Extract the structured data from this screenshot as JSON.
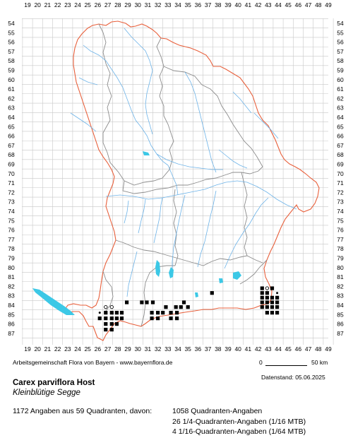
{
  "grid": {
    "x_labels": [
      "19",
      "20",
      "21",
      "22",
      "23",
      "24",
      "25",
      "26",
      "27",
      "28",
      "29",
      "30",
      "31",
      "32",
      "33",
      "34",
      "35",
      "36",
      "37",
      "38",
      "39",
      "40",
      "41",
      "42",
      "43",
      "44",
      "45",
      "46",
      "47",
      "48",
      "49"
    ],
    "y_labels": [
      "54",
      "55",
      "56",
      "57",
      "58",
      "59",
      "60",
      "61",
      "62",
      "63",
      "64",
      "65",
      "66",
      "67",
      "68",
      "69",
      "70",
      "71",
      "72",
      "73",
      "74",
      "75",
      "76",
      "77",
      "78",
      "79",
      "80",
      "81",
      "82",
      "83",
      "84",
      "85",
      "86",
      "87"
    ]
  },
  "colors": {
    "grid": "#c8c8c8",
    "state_border": "#e8603c",
    "district_border": "#8c8c8c",
    "rivers": "#6db3e8",
    "lakes": "#3cc8e6",
    "dots": "#000000"
  },
  "occurrences": {
    "filled": [
      [
        26.2,
        85.4
      ],
      [
        26.8,
        84.8
      ],
      [
        27.4,
        84.8
      ],
      [
        27.9,
        84.8
      ],
      [
        28.4,
        84.8
      ],
      [
        26.8,
        85.4
      ],
      [
        27.4,
        85.4
      ],
      [
        27.9,
        85.4
      ],
      [
        28.4,
        85.4
      ],
      [
        26.8,
        86.0
      ],
      [
        27.4,
        86.0
      ],
      [
        27.9,
        86.0
      ],
      [
        26.8,
        86.6
      ],
      [
        27.4,
        86.6
      ],
      [
        28.9,
        83.7
      ],
      [
        30.4,
        83.7
      ],
      [
        30.9,
        83.7
      ],
      [
        31.5,
        83.7
      ],
      [
        32.8,
        84.2
      ],
      [
        34.6,
        83.7
      ],
      [
        35.0,
        84.2
      ],
      [
        33.8,
        84.2
      ],
      [
        34.3,
        84.2
      ],
      [
        31.4,
        84.8
      ],
      [
        32.0,
        84.8
      ],
      [
        32.5,
        84.8
      ],
      [
        33.3,
        84.8
      ],
      [
        33.9,
        84.8
      ],
      [
        31.4,
        85.4
      ],
      [
        32.0,
        85.4
      ],
      [
        33.3,
        85.4
      ],
      [
        33.9,
        85.4
      ],
      [
        37.4,
        82.7
      ],
      [
        42.4,
        82.2
      ],
      [
        43.4,
        82.2
      ],
      [
        42.4,
        82.7
      ],
      [
        42.9,
        82.7
      ],
      [
        42.4,
        83.2
      ],
      [
        42.9,
        83.2
      ],
      [
        43.4,
        83.2
      ],
      [
        43.9,
        83.2
      ],
      [
        42.4,
        83.7
      ],
      [
        42.9,
        83.7
      ],
      [
        43.4,
        83.7
      ],
      [
        43.9,
        83.7
      ],
      [
        42.4,
        84.2
      ],
      [
        42.9,
        84.2
      ],
      [
        43.4,
        84.2
      ],
      [
        43.9,
        84.2
      ],
      [
        42.9,
        84.8
      ],
      [
        43.4,
        84.8
      ],
      [
        43.9,
        84.8
      ]
    ],
    "open": [
      [
        26.8,
        84.2
      ],
      [
        27.4,
        84.2
      ],
      [
        42.9,
        82.2
      ]
    ],
    "small": [
      [
        43.9,
        82.7
      ],
      [
        26.2,
        84.8
      ]
    ]
  },
  "footer": {
    "credit": "Arbeitsgemeinschaft Flora von Bayern - www.bayernflora.de",
    "date": "Datenstand: 05.06.2025",
    "scale_start": "0",
    "scale_end": "50 km",
    "species": "Carex parviflora Host",
    "common_name": "Kleinblütige Segge",
    "summary": "1172 Angaben aus 59 Quadranten, davon:",
    "stats": [
      "1058 Quadranten-Angaben",
      "26 1/4-Quadranten-Angaben (1/16 MTB)",
      "4 1/16-Quadranten-Angaben (1/64 MTB)"
    ]
  }
}
